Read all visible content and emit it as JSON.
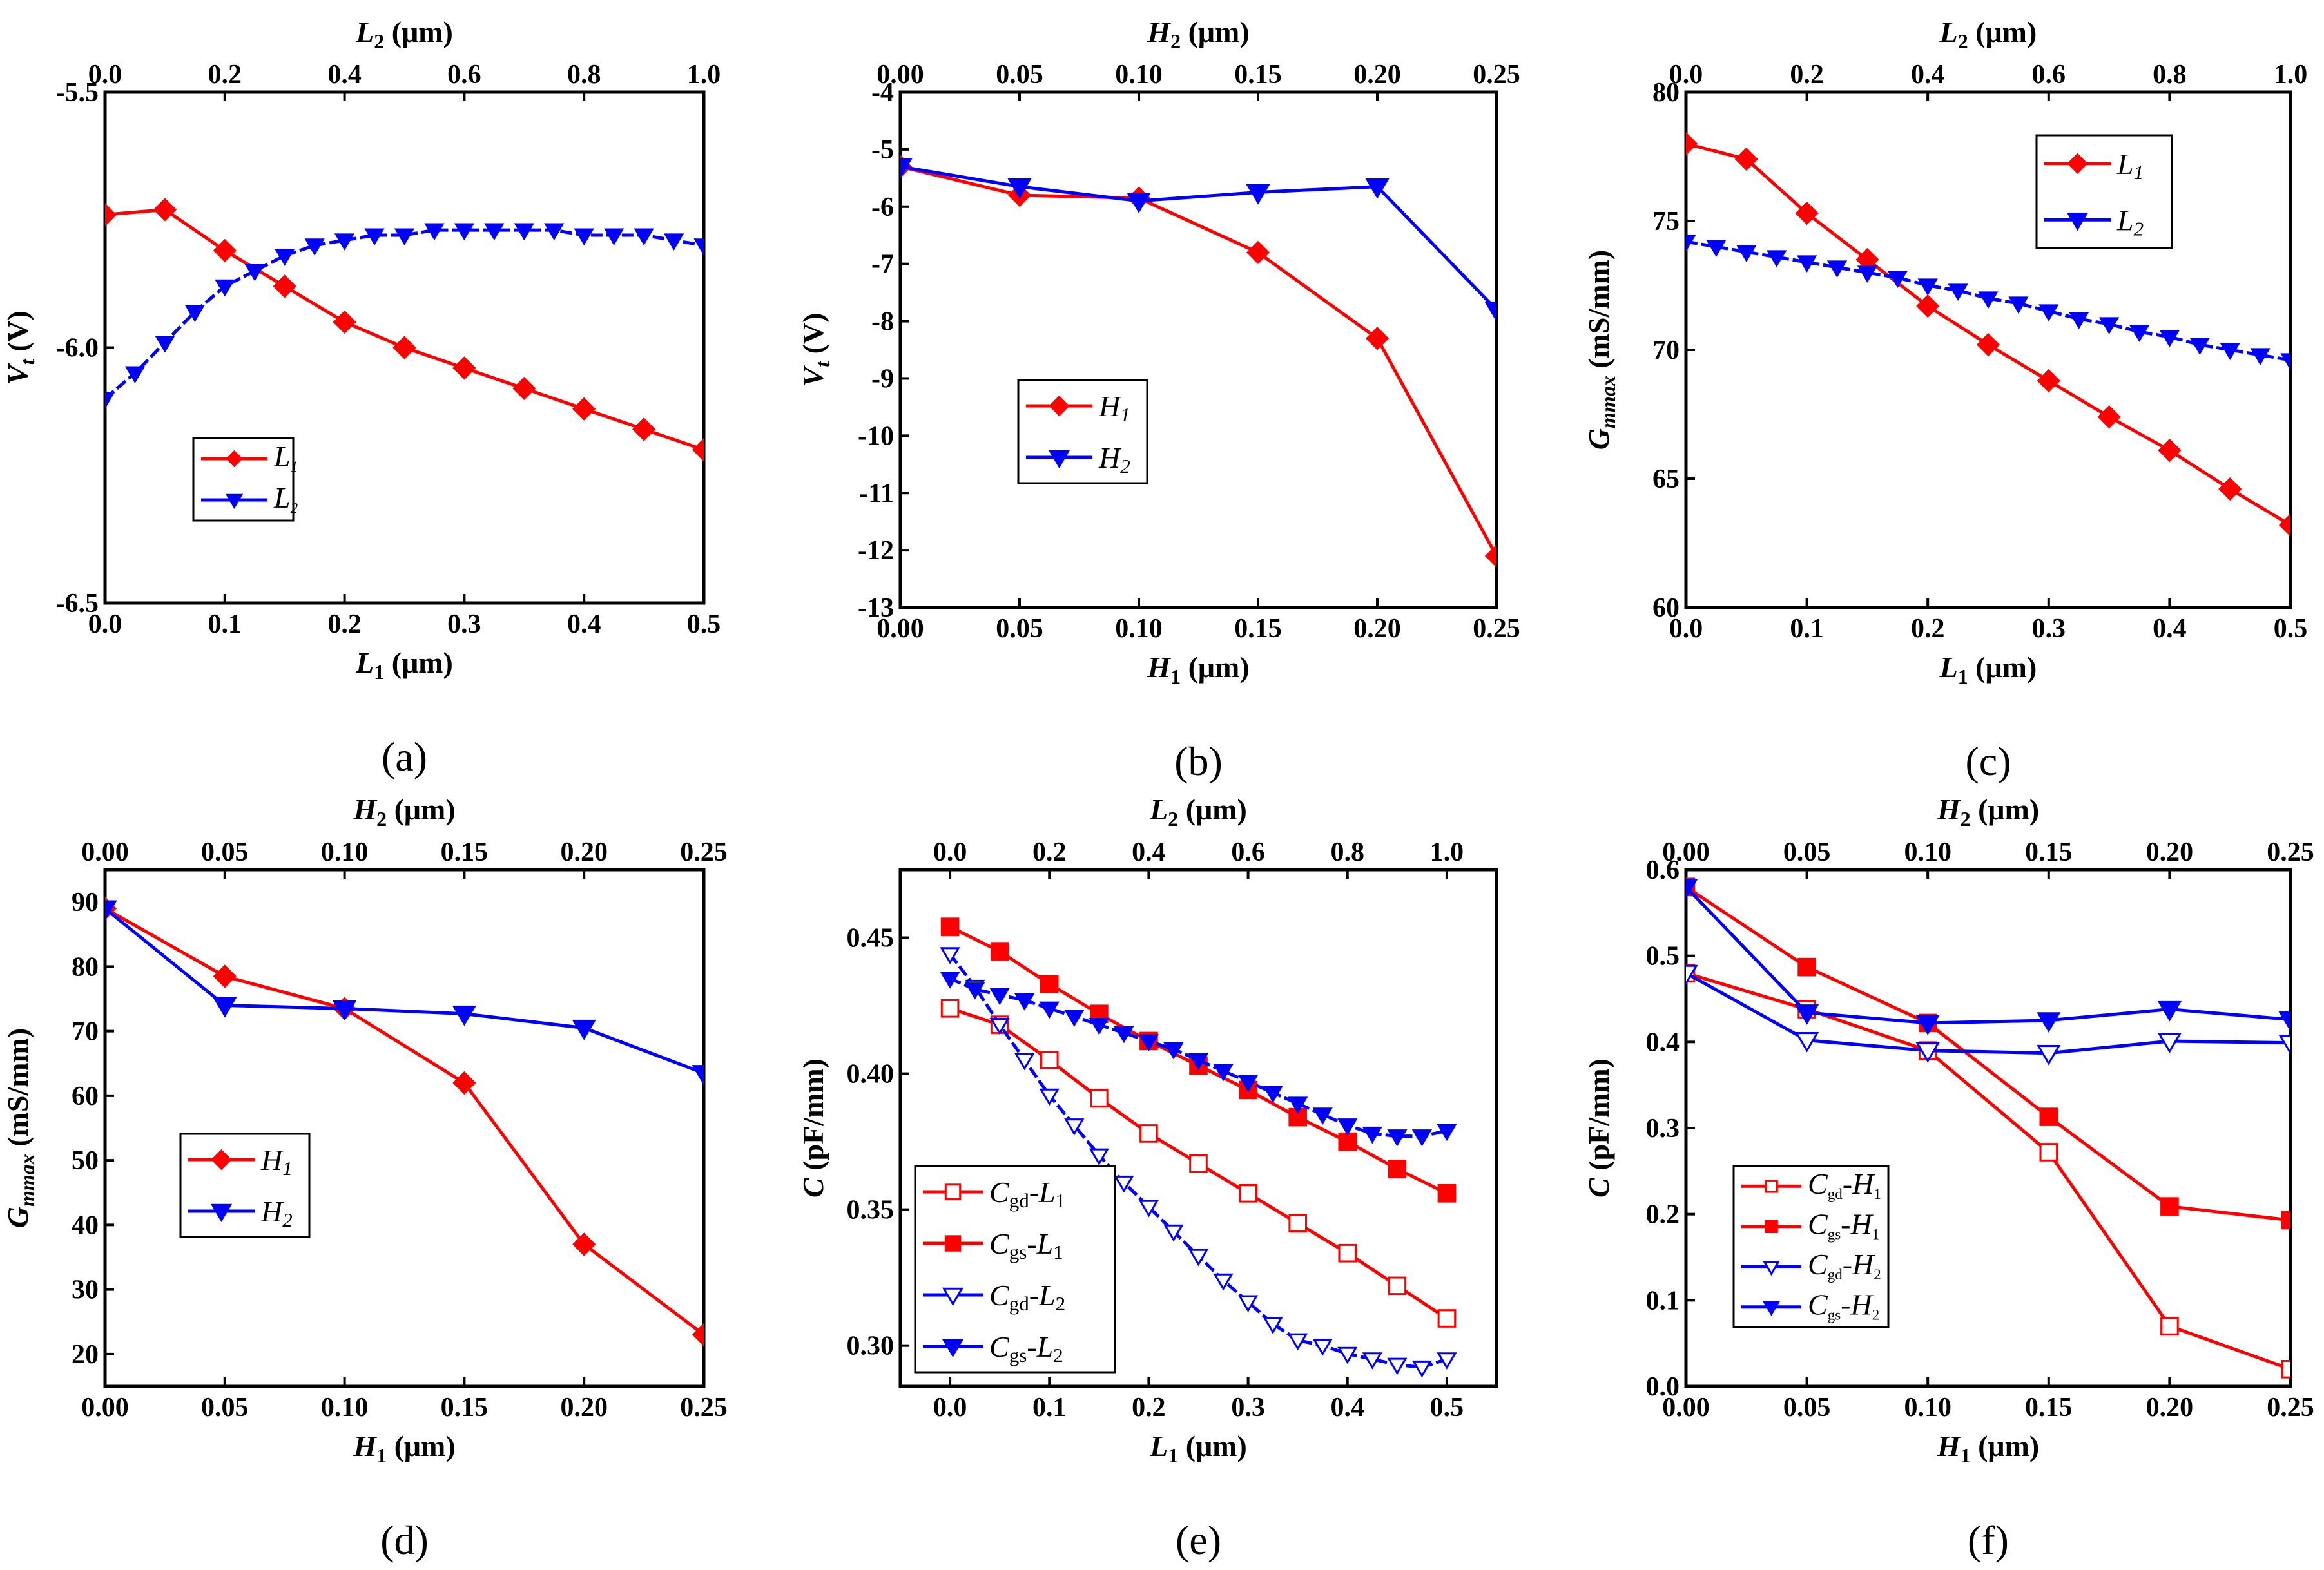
{
  "figure": {
    "title": "",
    "colors": {
      "red": "#ff0000",
      "blue": "#0000ff"
    }
  },
  "chart_data": [
    {
      "panel_label": "(a)",
      "type": "line",
      "xlabel": "L1 (μm)",
      "xlabel_main": "L",
      "xlabel_sub": "1",
      "xlabel_unit": " (μm)",
      "x2label": "L2 (μm)",
      "x2label_main": "L",
      "x2label_sub": "2",
      "x2label_unit": " (μm)",
      "ylabel": "Vt (V)",
      "ylabel_main": "V",
      "ylabel_sub": "t",
      "ylabel_unit": " (V)",
      "xlim": [
        0,
        0.5
      ],
      "x2lim": [
        0,
        1.0
      ],
      "ylim": [
        -6.5,
        -5.5
      ],
      "xticks": [
        "0.0",
        "0.1",
        "0.2",
        "0.3",
        "0.4",
        "0.5"
      ],
      "x2ticks": [
        "0.0",
        "0.2",
        "0.4",
        "0.6",
        "0.8",
        "1.0"
      ],
      "yticks": [
        "-5.5",
        "-6.0",
        "-6.5"
      ],
      "series": [
        {
          "name": "L1",
          "name_main": "L",
          "name_sub": "1",
          "axis": "bottom",
          "color": "#ff0000",
          "marker": "diamond",
          "filled": true,
          "x": [
            0,
            0.05,
            0.1,
            0.15,
            0.2,
            0.25,
            0.3,
            0.35,
            0.4,
            0.45,
            0.5
          ],
          "y": [
            -5.74,
            -5.73,
            -5.81,
            -5.88,
            -5.95,
            -6.0,
            -6.04,
            -6.08,
            -6.12,
            -6.16,
            -6.2
          ]
        },
        {
          "name": "L2",
          "name_main": "L",
          "name_sub": "2",
          "axis": "top",
          "color": "#0000ff",
          "marker": "triangle-down",
          "filled": true,
          "x": [
            0,
            0.05,
            0.1,
            0.15,
            0.2,
            0.25,
            0.3,
            0.35,
            0.4,
            0.45,
            0.5,
            0.55,
            0.6,
            0.65,
            0.7,
            0.75,
            0.8,
            0.85,
            0.9,
            0.95,
            1.0
          ],
          "y": [
            -6.1,
            -6.05,
            -5.99,
            -5.93,
            -5.88,
            -5.85,
            -5.82,
            -5.8,
            -5.79,
            -5.78,
            -5.78,
            -5.77,
            -5.77,
            -5.77,
            -5.77,
            -5.77,
            -5.78,
            -5.78,
            -5.78,
            -5.79,
            -5.8
          ]
        }
      ],
      "legend": {
        "placement": "lower-left"
      }
    },
    {
      "panel_label": "(b)",
      "type": "line",
      "xlabel": "H1 (μm)",
      "xlabel_main": "H",
      "xlabel_sub": "1",
      "xlabel_unit": " (μm)",
      "x2label": "H2 (μm)",
      "x2label_main": "H",
      "x2label_sub": "2",
      "x2label_unit": " (μm)",
      "ylabel": "Vt (V)",
      "ylabel_main": "V",
      "ylabel_sub": "t",
      "ylabel_unit": " (V)",
      "xlim": [
        0,
        0.25
      ],
      "x2lim": [
        0,
        0.25
      ],
      "ylim": [
        -13,
        -4
      ],
      "xticks": [
        "0.00",
        "0.05",
        "0.10",
        "0.15",
        "0.20",
        "0.25"
      ],
      "x2ticks": [
        "0.00",
        "0.05",
        "0.10",
        "0.15",
        "0.20",
        "0.25"
      ],
      "yticks": [
        "-4",
        "-5",
        "-6",
        "-7",
        "-8",
        "-9",
        "-10",
        "-11",
        "-12",
        "-13"
      ],
      "series": [
        {
          "name": "H1",
          "name_main": "H",
          "name_sub": "1",
          "axis": "bottom",
          "color": "#ff0000",
          "marker": "diamond",
          "filled": true,
          "x": [
            0,
            0.05,
            0.1,
            0.15,
            0.2,
            0.25
          ],
          "y": [
            -5.3,
            -5.8,
            -5.85,
            -6.8,
            -8.3,
            -12.1
          ]
        },
        {
          "name": "H2",
          "name_main": "H",
          "name_sub": "2",
          "axis": "top",
          "color": "#0000ff",
          "marker": "triangle-down",
          "filled": true,
          "x": [
            0,
            0.05,
            0.1,
            0.15,
            0.2,
            0.25
          ],
          "y": [
            -5.3,
            -5.65,
            -5.9,
            -5.75,
            -5.65,
            -7.8
          ]
        }
      ],
      "legend": {
        "placement": "center-left"
      }
    },
    {
      "panel_label": "(c)",
      "type": "line",
      "xlabel": "L1 (μm)",
      "xlabel_main": "L",
      "xlabel_sub": "1",
      "xlabel_unit": " (μm)",
      "x2label": "L2 (μm)",
      "x2label_main": "L",
      "x2label_sub": "2",
      "x2label_unit": " (μm)",
      "ylabel": "Gmmax (mS/mm)",
      "ylabel_main": "G",
      "ylabel_sub": "mmax",
      "ylabel_unit": " (mS/mm)",
      "xlim": [
        0,
        0.5
      ],
      "x2lim": [
        0,
        1.0
      ],
      "ylim": [
        60,
        80
      ],
      "xticks": [
        "0.0",
        "0.1",
        "0.2",
        "0.3",
        "0.4",
        "0.5"
      ],
      "x2ticks": [
        "0.0",
        "0.2",
        "0.4",
        "0.6",
        "0.8",
        "1.0"
      ],
      "yticks": [
        "60",
        "65",
        "70",
        "75",
        "80"
      ],
      "series": [
        {
          "name": "L1",
          "name_main": "L",
          "name_sub": "1",
          "axis": "bottom",
          "color": "#ff0000",
          "marker": "diamond",
          "filled": true,
          "x": [
            0,
            0.05,
            0.1,
            0.15,
            0.2,
            0.25,
            0.3,
            0.35,
            0.4,
            0.45,
            0.5
          ],
          "y": [
            78.0,
            77.4,
            75.3,
            73.5,
            71.7,
            70.2,
            68.8,
            67.4,
            66.1,
            64.6,
            63.2
          ]
        },
        {
          "name": "L2",
          "name_main": "L",
          "name_sub": "2",
          "axis": "top",
          "color": "#0000ff",
          "marker": "triangle-down",
          "filled": true,
          "x": [
            0,
            0.05,
            0.1,
            0.15,
            0.2,
            0.25,
            0.3,
            0.35,
            0.4,
            0.45,
            0.5,
            0.55,
            0.6,
            0.65,
            0.7,
            0.75,
            0.8,
            0.85,
            0.9,
            0.95,
            1.0
          ],
          "y": [
            74.2,
            74.0,
            73.8,
            73.6,
            73.4,
            73.2,
            73.0,
            72.8,
            72.5,
            72.3,
            72.0,
            71.8,
            71.5,
            71.2,
            71.0,
            70.7,
            70.5,
            70.2,
            70.0,
            69.8,
            69.6
          ]
        }
      ],
      "legend": {
        "placement": "top-right"
      }
    },
    {
      "panel_label": "(d)",
      "type": "line",
      "xlabel": "H1 (μm)",
      "xlabel_main": "H",
      "xlabel_sub": "1",
      "xlabel_unit": " (μm)",
      "x2label": "H2 (μm)",
      "x2label_main": "H",
      "x2label_sub": "2",
      "x2label_unit": " (μm)",
      "ylabel": "Gmmax (mS/mm)",
      "ylabel_main": "G",
      "ylabel_sub": "mmax",
      "ylabel_unit": " (mS/mm)",
      "xlim": [
        0,
        0.25
      ],
      "x2lim": [
        0,
        0.25
      ],
      "ylim": [
        15,
        95
      ],
      "xticks": [
        "0.00",
        "0.05",
        "0.10",
        "0.15",
        "0.20",
        "0.25"
      ],
      "x2ticks": [
        "0.00",
        "0.05",
        "0.10",
        "0.15",
        "0.20",
        "0.25"
      ],
      "yticks": [
        "20",
        "30",
        "40",
        "50",
        "60",
        "70",
        "80",
        "90"
      ],
      "series": [
        {
          "name": "H1",
          "name_main": "H",
          "name_sub": "1",
          "axis": "bottom",
          "color": "#ff0000",
          "marker": "diamond",
          "filled": true,
          "x": [
            0,
            0.05,
            0.1,
            0.15,
            0.2,
            0.25
          ],
          "y": [
            89,
            78.5,
            73.5,
            62,
            37,
            23
          ]
        },
        {
          "name": "H2",
          "name_main": "H",
          "name_sub": "2",
          "axis": "top",
          "color": "#0000ff",
          "marker": "triangle-down",
          "filled": true,
          "x": [
            0,
            0.05,
            0.1,
            0.15,
            0.2,
            0.25
          ],
          "y": [
            89,
            74,
            73.5,
            72.7,
            70.5,
            63.5
          ]
        }
      ],
      "legend": {
        "placement": "center-left"
      }
    },
    {
      "panel_label": "(e)",
      "type": "line",
      "xlabel": "L1 (μm)",
      "xlabel_main": "L",
      "xlabel_sub": "1",
      "xlabel_unit": " (μm)",
      "x2label": "L2 (μm)",
      "x2label_main": "L",
      "x2label_sub": "2",
      "x2label_unit": " (μm)",
      "ylabel": "C (pF/mm)",
      "ylabel_main": "C",
      "ylabel_sub": "",
      "ylabel_unit": " (pF/mm)",
      "xlim": [
        -0.05,
        0.55
      ],
      "x2lim": [
        -0.1,
        1.1
      ],
      "ylim": [
        0.285,
        0.475
      ],
      "xticks": [
        "0.0",
        "0.1",
        "0.2",
        "0.3",
        "0.4",
        "0.5"
      ],
      "x2ticks": [
        "0.0",
        "0.2",
        "0.4",
        "0.6",
        "0.8",
        "1.0"
      ],
      "yticks": [
        "0.30",
        "0.35",
        "0.40",
        "0.45"
      ],
      "series": [
        {
          "name": "Cgd-L1",
          "name_main": "C",
          "name_sub": "gd",
          "name_suffix_main": "-L",
          "name_suffix_sub": "1",
          "axis": "bottom",
          "color": "#ff0000",
          "marker": "square",
          "filled": false,
          "x": [
            0,
            0.05,
            0.1,
            0.15,
            0.2,
            0.25,
            0.3,
            0.35,
            0.4,
            0.45,
            0.5
          ],
          "y": [
            0.424,
            0.418,
            0.405,
            0.391,
            0.378,
            0.367,
            0.356,
            0.345,
            0.334,
            0.322,
            0.31
          ]
        },
        {
          "name": "Cgs-L1",
          "name_main": "C",
          "name_sub": "gs",
          "name_suffix_main": "-L",
          "name_suffix_sub": "1",
          "axis": "bottom",
          "color": "#ff0000",
          "marker": "square",
          "filled": true,
          "x": [
            0,
            0.05,
            0.1,
            0.15,
            0.2,
            0.25,
            0.3,
            0.35,
            0.4,
            0.45,
            0.5
          ],
          "y": [
            0.454,
            0.445,
            0.433,
            0.422,
            0.412,
            0.403,
            0.394,
            0.384,
            0.375,
            0.365,
            0.356
          ]
        },
        {
          "name": "Cgd-L2",
          "name_main": "C",
          "name_sub": "gd",
          "name_suffix_main": "-L",
          "name_suffix_sub": "2",
          "axis": "top",
          "color": "#0000ff",
          "marker": "triangle-down",
          "filled": false,
          "x": [
            0,
            0.05,
            0.1,
            0.15,
            0.2,
            0.25,
            0.3,
            0.35,
            0.4,
            0.45,
            0.5,
            0.55,
            0.6,
            0.65,
            0.7,
            0.75,
            0.8,
            0.85,
            0.9,
            0.95,
            1.0
          ],
          "y": [
            0.444,
            0.432,
            0.418,
            0.405,
            0.392,
            0.381,
            0.37,
            0.36,
            0.351,
            0.342,
            0.333,
            0.324,
            0.316,
            0.308,
            0.302,
            0.3,
            0.297,
            0.295,
            0.293,
            0.292,
            0.295
          ]
        },
        {
          "name": "Cgs-L2",
          "name_main": "C",
          "name_sub": "gs",
          "name_suffix_main": "-L",
          "name_suffix_sub": "2",
          "axis": "top",
          "color": "#0000ff",
          "marker": "triangle-down",
          "filled": true,
          "x": [
            0,
            0.05,
            0.1,
            0.15,
            0.2,
            0.25,
            0.3,
            0.35,
            0.4,
            0.45,
            0.5,
            0.55,
            0.6,
            0.65,
            0.7,
            0.75,
            0.8,
            0.85,
            0.9,
            0.95,
            1.0
          ],
          "y": [
            0.435,
            0.431,
            0.429,
            0.427,
            0.424,
            0.421,
            0.418,
            0.415,
            0.412,
            0.409,
            0.405,
            0.401,
            0.397,
            0.393,
            0.389,
            0.385,
            0.381,
            0.378,
            0.377,
            0.377,
            0.379
          ]
        }
      ],
      "legend": {
        "placement": "lower-left"
      }
    },
    {
      "panel_label": "(f)",
      "type": "line",
      "xlabel": "H1 (μm)",
      "xlabel_main": "H",
      "xlabel_sub": "1",
      "xlabel_unit": " (μm)",
      "x2label": "H2 (μm)",
      "x2label_main": "H",
      "x2label_sub": "2",
      "x2label_unit": " (μm)",
      "ylabel": "C (pF/mm)",
      "ylabel_main": "C",
      "ylabel_sub": "",
      "ylabel_unit": " (pF/mm)",
      "xlim": [
        0,
        0.25
      ],
      "x2lim": [
        0,
        0.25
      ],
      "ylim": [
        0,
        0.6
      ],
      "xticks": [
        "0.00",
        "0.05",
        "0.10",
        "0.15",
        "0.20",
        "0.25"
      ],
      "x2ticks": [
        "0.00",
        "0.05",
        "0.10",
        "0.15",
        "0.20",
        "0.25"
      ],
      "yticks": [
        "0.0",
        "0.1",
        "0.2",
        "0.3",
        "0.4",
        "0.5",
        "0.6"
      ],
      "series": [
        {
          "name": "Cgd-H1",
          "name_main": "C",
          "name_sub": "gd",
          "name_suffix_main": "-H",
          "name_suffix_sub": "1",
          "axis": "bottom",
          "color": "#ff0000",
          "marker": "square",
          "filled": false,
          "x": [
            0,
            0.05,
            0.1,
            0.15,
            0.2,
            0.25
          ],
          "y": [
            0.48,
            0.438,
            0.39,
            0.272,
            0.07,
            0.02
          ]
        },
        {
          "name": "Cgs-H1",
          "name_main": "C",
          "name_sub": "gs",
          "name_suffix_main": "-H",
          "name_suffix_sub": "1",
          "axis": "bottom",
          "color": "#ff0000",
          "marker": "square",
          "filled": true,
          "x": [
            0,
            0.05,
            0.1,
            0.15,
            0.2,
            0.25
          ],
          "y": [
            0.58,
            0.487,
            0.422,
            0.313,
            0.209,
            0.193
          ]
        },
        {
          "name": "Cgd-H2",
          "name_main": "C",
          "name_sub": "gd",
          "name_suffix_main": "-H",
          "name_suffix_sub": "2",
          "axis": "top",
          "color": "#0000ff",
          "marker": "triangle-down",
          "filled": false,
          "x": [
            0,
            0.05,
            0.1,
            0.15,
            0.2,
            0.25
          ],
          "y": [
            0.48,
            0.402,
            0.39,
            0.387,
            0.401,
            0.399
          ]
        },
        {
          "name": "Cgs-H2",
          "name_main": "C",
          "name_sub": "gs",
          "name_suffix_main": "-H",
          "name_suffix_sub": "2",
          "axis": "top",
          "color": "#0000ff",
          "marker": "triangle-down",
          "filled": true,
          "x": [
            0,
            0.05,
            0.1,
            0.15,
            0.2,
            0.25
          ],
          "y": [
            0.58,
            0.434,
            0.422,
            0.425,
            0.438,
            0.426
          ]
        }
      ],
      "legend": {
        "placement": "lower-left"
      }
    }
  ]
}
